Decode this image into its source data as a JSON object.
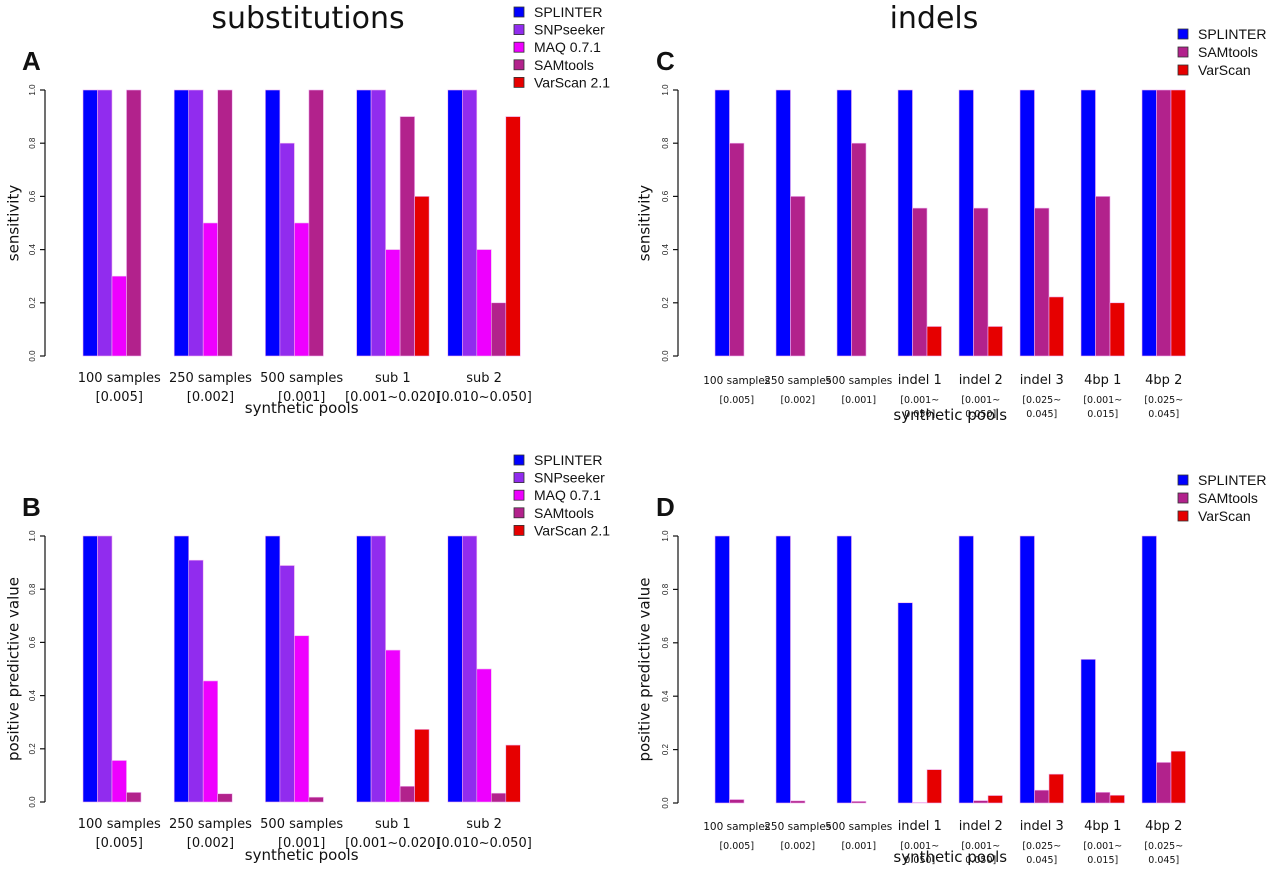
{
  "sections": {
    "left_title": "substitutions",
    "right_title": "indels"
  },
  "colors": {
    "SPLINTER": "#0000ff",
    "SNPseeker": "#912cee",
    "MAQ 0.7.1": "#ee00ff",
    "SAMtools": "#b2228c",
    "VarScan 2.1": "#e60000",
    "VarScan": "#e60000"
  },
  "chart_data": [
    {
      "panel": "A",
      "type": "bar",
      "title": "substitutions",
      "ylabel": "sensitivity",
      "xlabel": "synthetic pools",
      "ylim": [
        0,
        1
      ],
      "yticks": [
        "0.0",
        "0.2",
        "0.4",
        "0.6",
        "0.8",
        "1.0"
      ],
      "grid": false,
      "legend": "top-right",
      "categories": [
        [
          "100 samples",
          "[0.005]"
        ],
        [
          "250 samples",
          "[0.002]"
        ],
        [
          "500 samples",
          "[0.001]"
        ],
        [
          "sub 1",
          "[0.001~0.020]"
        ],
        [
          "sub 2",
          "[0.010~0.050]"
        ]
      ],
      "series": [
        {
          "name": "SPLINTER",
          "values": [
            1.0,
            1.0,
            1.0,
            1.0,
            1.0
          ]
        },
        {
          "name": "SNPseeker",
          "values": [
            1.0,
            1.0,
            0.8,
            1.0,
            1.0
          ]
        },
        {
          "name": "MAQ 0.7.1",
          "values": [
            0.3,
            0.5,
            0.5,
            0.4,
            0.4
          ]
        },
        {
          "name": "SAMtools",
          "values": [
            1.0,
            1.0,
            1.0,
            0.9,
            0.2
          ]
        },
        {
          "name": "VarScan 2.1",
          "values": [
            0,
            0,
            0,
            0.6,
            0.9
          ]
        }
      ]
    },
    {
      "panel": "B",
      "type": "bar",
      "title": "",
      "ylabel": "positive predictive value",
      "xlabel": "synthetic pools",
      "ylim": [
        0,
        1
      ],
      "yticks": [
        "0.0",
        "0.2",
        "0.4",
        "0.6",
        "0.8",
        "1.0"
      ],
      "grid": false,
      "legend": "top-right",
      "categories": [
        [
          "100 samples",
          "[0.005]"
        ],
        [
          "250 samples",
          "[0.002]"
        ],
        [
          "500 samples",
          "[0.001]"
        ],
        [
          "sub 1",
          "[0.001~0.020]"
        ],
        [
          "sub 2",
          "[0.010~0.050]"
        ]
      ],
      "series": [
        {
          "name": "SPLINTER",
          "values": [
            1.0,
            1.0,
            1.0,
            1.0,
            1.0
          ]
        },
        {
          "name": "SNPseeker",
          "values": [
            1.0,
            0.909,
            0.889,
            1.0,
            1.0
          ]
        },
        {
          "name": "MAQ 0.7.1",
          "values": [
            0.156,
            0.455,
            0.625,
            0.571,
            0.5
          ]
        },
        {
          "name": "SAMtools",
          "values": [
            0.036,
            0.031,
            0.018,
            0.059,
            0.033
          ]
        },
        {
          "name": "VarScan 2.1",
          "values": [
            0,
            0,
            0,
            0.273,
            0.214
          ]
        }
      ]
    },
    {
      "panel": "C",
      "type": "bar",
      "title": "indels",
      "ylabel": "sensitivity",
      "xlabel": "synthetic pools",
      "ylim": [
        0,
        1
      ],
      "yticks": [
        "0.0",
        "0.2",
        "0.4",
        "0.6",
        "0.8",
        "1.0"
      ],
      "grid": false,
      "legend": "top-right",
      "categories": [
        [
          "100 samples",
          "[0.005]"
        ],
        [
          "250 samples",
          "[0.002]"
        ],
        [
          "500 samples",
          "[0.001]"
        ],
        [
          "indel 1",
          "[0.001~",
          "0.050]"
        ],
        [
          "indel 2",
          "[0.001~",
          "0.050]"
        ],
        [
          "indel 3",
          "[0.025~",
          "0.045]"
        ],
        [
          "4bp 1",
          "[0.001~",
          "0.015]"
        ],
        [
          "4bp 2",
          "[0.025~",
          "0.045]"
        ]
      ],
      "series": [
        {
          "name": "SPLINTER",
          "values": [
            1.0,
            1.0,
            1.0,
            1.0,
            1.0,
            1.0,
            1.0,
            1.0
          ]
        },
        {
          "name": "SAMtools",
          "values": [
            0.8,
            0.6,
            0.8,
            0.556,
            0.556,
            0.556,
            0.6,
            1.0
          ]
        },
        {
          "name": "VarScan",
          "values": [
            0,
            0,
            0,
            0.111,
            0.111,
            0.222,
            0.2,
            1.0
          ]
        }
      ]
    },
    {
      "panel": "D",
      "type": "bar",
      "title": "",
      "ylabel": "positive predictive value",
      "xlabel": "synthetic pools",
      "ylim": [
        0,
        1
      ],
      "yticks": [
        "0.0",
        "0.2",
        "0.4",
        "0.6",
        "0.8",
        "1.0"
      ],
      "grid": false,
      "legend": "top-right",
      "categories": [
        [
          "100 samples",
          "[0.005]"
        ],
        [
          "250 samples",
          "[0.002]"
        ],
        [
          "500 samples",
          "[0.001]"
        ],
        [
          "indel 1",
          "[0.001~",
          "0.050]"
        ],
        [
          "indel 2",
          "[0.001~",
          "0.050]"
        ],
        [
          "indel 3",
          "[0.025~",
          "0.045]"
        ],
        [
          "4bp 1",
          "[0.001~",
          "0.015]"
        ],
        [
          "4bp 2",
          "[0.025~",
          "0.045]"
        ]
      ],
      "series": [
        {
          "name": "SPLINTER",
          "values": [
            1.0,
            1.0,
            1.0,
            0.75,
            1.0,
            1.0,
            0.538,
            1.0
          ]
        },
        {
          "name": "SAMtools",
          "values": [
            0.013,
            0.008,
            0.006,
            0.002,
            0.009,
            0.048,
            0.04,
            0.152
          ]
        },
        {
          "name": "VarScan",
          "values": [
            0,
            0,
            0,
            0.125,
            0.028,
            0.108,
            0.029,
            0.194
          ]
        }
      ]
    }
  ]
}
